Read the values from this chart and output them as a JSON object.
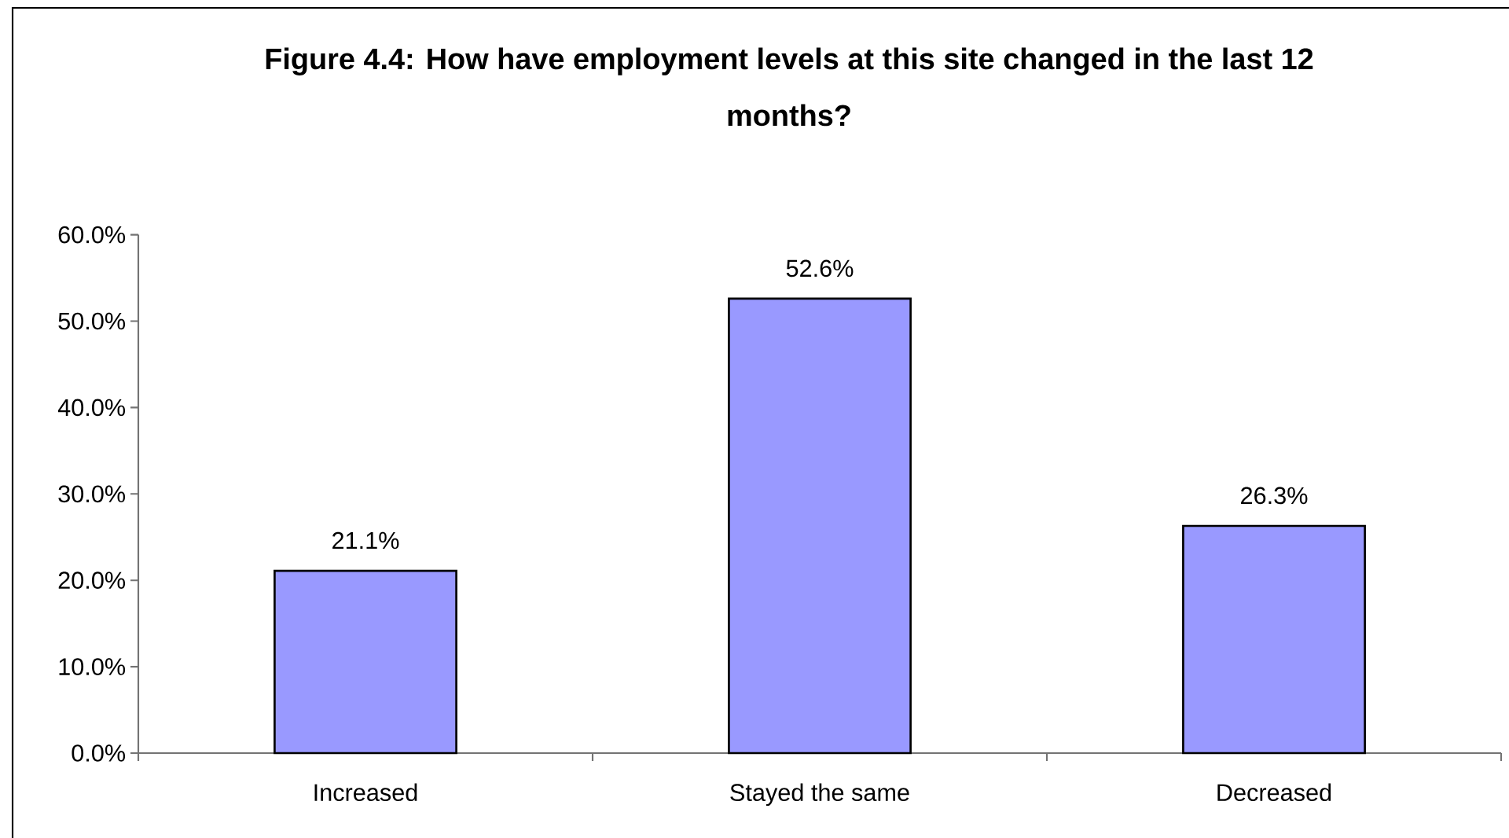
{
  "chart_data": {
    "type": "bar",
    "title": "Figure 4.4: How have employment levels at this site changed in the last 12 months?",
    "categories": [
      "Increased",
      "Stayed the same",
      "Decreased"
    ],
    "values": [
      21.1,
      52.6,
      26.3
    ],
    "value_labels": [
      "21.1%",
      "52.6%",
      "26.3%"
    ],
    "color": "#9999ff",
    "ylim": [
      0,
      60
    ],
    "yticks": [
      {
        "value": 0,
        "label": "0.0%"
      },
      {
        "value": 10,
        "label": "10.0%"
      },
      {
        "value": 20,
        "label": "20.0%"
      },
      {
        "value": 30,
        "label": "30.0%"
      },
      {
        "value": 40,
        "label": "40.0%"
      },
      {
        "value": 50,
        "label": "50.0%"
      },
      {
        "value": 60,
        "label": "60.0%"
      }
    ]
  }
}
